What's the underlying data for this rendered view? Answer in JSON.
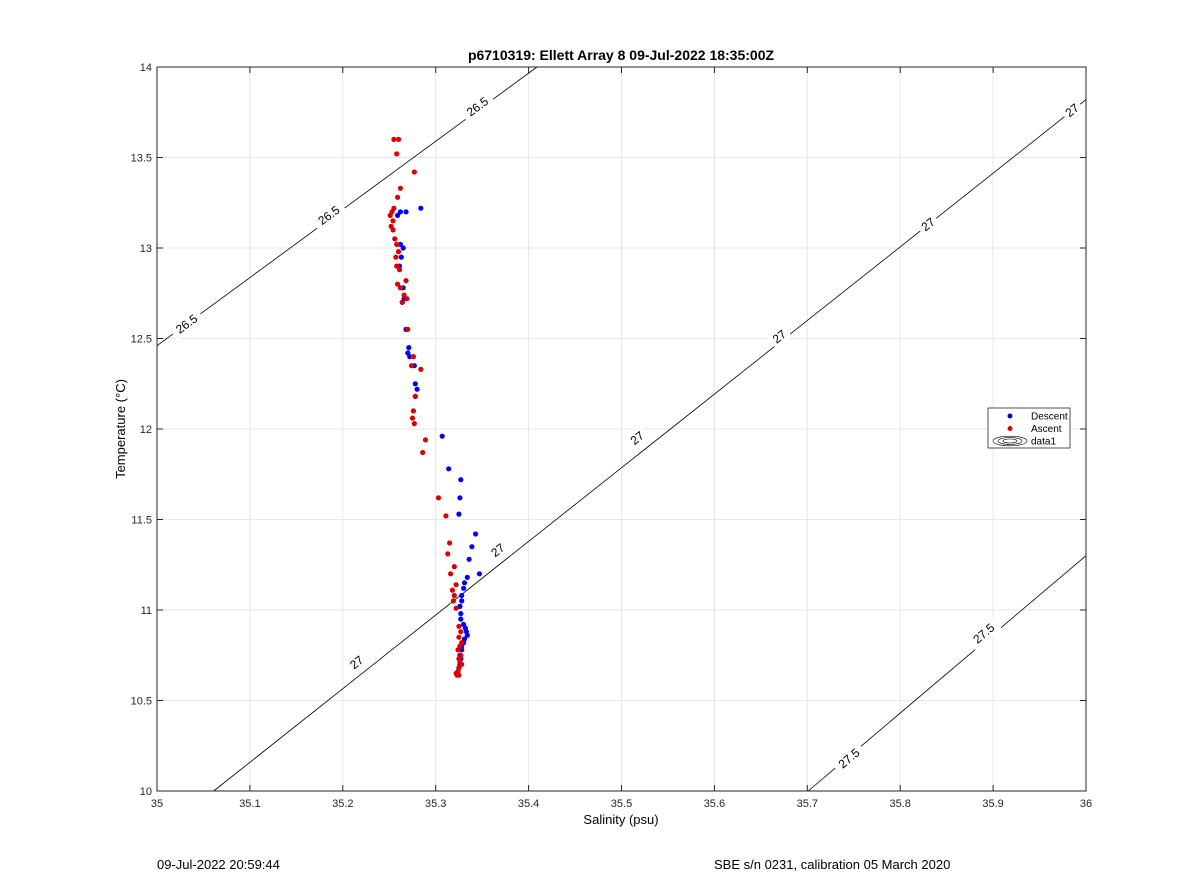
{
  "chart_data": {
    "type": "scatter",
    "title": "p6710319: Ellett Array 8 09-Jul-2022 18:35:00Z",
    "xlabel": "Salinity (psu)",
    "ylabel": "Temperature (°C)",
    "xlim": [
      35,
      36
    ],
    "ylim": [
      10,
      14
    ],
    "xticks": [
      "35",
      "35.1",
      "35.2",
      "35.3",
      "35.4",
      "35.5",
      "35.6",
      "35.7",
      "35.8",
      "35.9",
      "36"
    ],
    "yticks": [
      "10",
      "10.5",
      "11",
      "11.5",
      "12",
      "12.5",
      "13",
      "13.5",
      "14"
    ],
    "grid": true,
    "legend_position": "right",
    "series": [
      {
        "name": "Descent",
        "color": "#0000ff",
        "x": [
          35.284,
          35.268,
          35.262,
          35.259,
          35.262,
          35.265,
          35.263,
          35.261,
          35.265,
          35.266,
          35.264,
          35.268,
          35.271,
          35.27,
          35.272,
          35.277,
          35.278,
          35.28,
          35.278,
          35.307,
          35.314,
          35.327,
          35.326,
          35.325,
          35.343,
          35.339,
          35.336,
          35.347,
          35.334,
          35.331,
          35.33,
          35.328,
          35.328,
          35.326,
          35.327,
          35.327,
          35.33,
          35.332,
          35.333,
          35.334,
          35.331,
          35.33,
          35.328,
          35.328,
          35.326,
          35.327,
          35.326,
          35.325
        ],
        "y": [
          13.22,
          13.2,
          13.2,
          13.18,
          13.02,
          13.0,
          12.95,
          12.9,
          12.78,
          12.72,
          12.7,
          12.55,
          12.45,
          12.42,
          12.4,
          12.35,
          12.25,
          12.22,
          12.18,
          11.96,
          11.78,
          11.72,
          11.62,
          11.53,
          11.42,
          11.35,
          11.28,
          11.2,
          11.18,
          11.15,
          11.12,
          11.08,
          11.05,
          11.02,
          10.98,
          10.95,
          10.92,
          10.9,
          10.88,
          10.86,
          10.84,
          10.82,
          10.8,
          10.78,
          10.75,
          10.73,
          10.7,
          10.68
        ]
      },
      {
        "name": "Ascent",
        "color": "#dd0000",
        "x": [
          35.255,
          35.26,
          35.258,
          35.277,
          35.262,
          35.259,
          35.255,
          35.253,
          35.251,
          35.254,
          35.252,
          35.254,
          35.256,
          35.258,
          35.26,
          35.257,
          35.258,
          35.261,
          35.259,
          35.268,
          35.262,
          35.266,
          35.269,
          35.264,
          35.27,
          35.276,
          35.274,
          35.284,
          35.278,
          35.276,
          35.275,
          35.277,
          35.289,
          35.286,
          35.303,
          35.311,
          35.315,
          35.313,
          35.32,
          35.316,
          35.322,
          35.318,
          35.32,
          35.319,
          35.322,
          35.325,
          35.327,
          35.325,
          35.328,
          35.326,
          35.324,
          35.327,
          35.325,
          35.326,
          35.328,
          35.325,
          35.324,
          35.322,
          35.325,
          35.323
        ],
        "y": [
          13.6,
          13.6,
          13.52,
          13.42,
          13.33,
          13.28,
          13.22,
          13.2,
          13.18,
          13.15,
          13.12,
          13.1,
          13.05,
          13.02,
          12.98,
          12.95,
          12.9,
          12.88,
          12.8,
          12.82,
          12.78,
          12.74,
          12.72,
          12.7,
          12.55,
          12.4,
          12.35,
          12.33,
          12.18,
          12.1,
          12.06,
          12.03,
          11.94,
          11.87,
          11.62,
          11.52,
          11.37,
          11.31,
          11.24,
          11.2,
          11.14,
          11.11,
          11.08,
          11.05,
          11.01,
          10.91,
          10.88,
          10.85,
          10.82,
          10.8,
          10.78,
          10.75,
          10.73,
          10.71,
          10.7,
          10.68,
          10.66,
          10.65,
          10.64,
          10.64
        ]
      }
    ],
    "contours": [
      {
        "label": "26.5",
        "points": [
          [
            35.0,
            12.46
          ],
          [
            35.409,
            14.0
          ]
        ]
      },
      {
        "label": "27",
        "points": [
          [
            35.061,
            10.0
          ],
          [
            36.0,
            13.82
          ]
        ]
      },
      {
        "label": "27.5",
        "points": [
          [
            35.701,
            10.0
          ],
          [
            36.0,
            11.3
          ]
        ]
      }
    ],
    "contour_labels": [
      {
        "text": "26.5",
        "x": 35.345,
        "y": 13.78
      },
      {
        "text": "26.5",
        "x": 35.185,
        "y": 13.18
      },
      {
        "text": "26.5",
        "x": 35.032,
        "y": 12.58
      },
      {
        "text": "27",
        "x": 35.985,
        "y": 13.76
      },
      {
        "text": "27",
        "x": 35.83,
        "y": 13.13
      },
      {
        "text": "27",
        "x": 35.67,
        "y": 12.51
      },
      {
        "text": "27",
        "x": 35.517,
        "y": 11.95
      },
      {
        "text": "27",
        "x": 35.367,
        "y": 11.33
      },
      {
        "text": "27",
        "x": 35.215,
        "y": 10.71
      },
      {
        "text": "27.5",
        "x": 35.89,
        "y": 10.87
      },
      {
        "text": "27.5",
        "x": 35.745,
        "y": 10.18
      }
    ],
    "legend": [
      {
        "label": "Descent",
        "symbol": "dot",
        "color": "#0000ff"
      },
      {
        "label": "Ascent",
        "symbol": "dot",
        "color": "#dd0000"
      },
      {
        "label": "data1",
        "symbol": "contour",
        "color": "#000000"
      }
    ]
  },
  "footer": {
    "left": "09-Jul-2022 20:59:44",
    "right": "SBE s/n 0231, calibration 05 March 2020"
  }
}
